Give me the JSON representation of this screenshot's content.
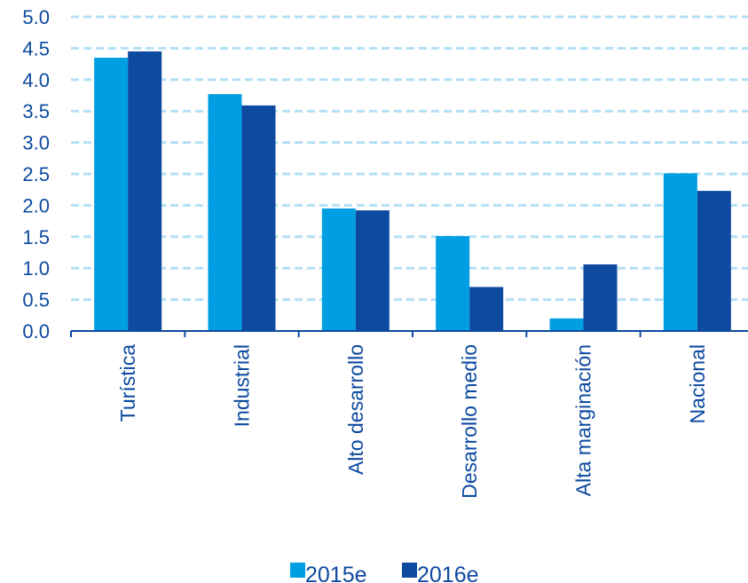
{
  "chart_data": {
    "type": "bar",
    "title": "",
    "xlabel": "",
    "ylabel": "",
    "categories": [
      "Turística",
      "Industrial",
      "Alto desarrollo",
      "Desarrollo medio",
      "Alta marginación",
      "Nacional"
    ],
    "series": [
      {
        "name": "2015e",
        "color": "#009fe3",
        "values": [
          4.35,
          3.77,
          1.95,
          1.51,
          0.2,
          2.51
        ]
      },
      {
        "name": "2016e",
        "color": "#0d4aa0",
        "values": [
          4.45,
          3.59,
          1.92,
          0.7,
          1.06,
          2.23
        ]
      }
    ],
    "ylim": [
      0,
      5
    ],
    "yticks": [
      "0.0",
      "0.5",
      "1.0",
      "1.5",
      "2.0",
      "2.5",
      "3.0",
      "3.5",
      "4.0",
      "4.5",
      "5.0"
    ],
    "grid": true,
    "grid_color": "#b3e0f5",
    "axis_color": "#0d4aa0",
    "legend_position": "bottom"
  }
}
